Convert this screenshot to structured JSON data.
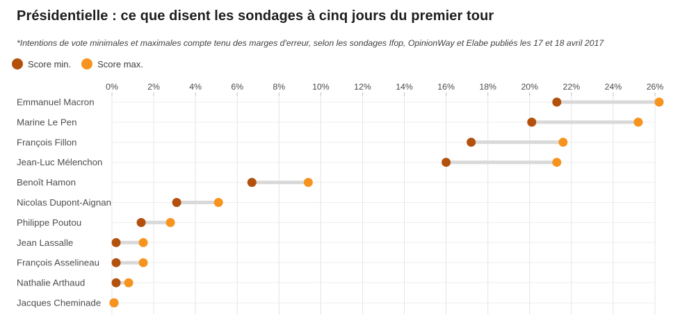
{
  "header": {
    "title": "Présidentielle : ce que disent les sondages à cinq jours du premier tour",
    "subtitle": "*Intentions de vote minimales et maximales compte tenu des marges d'erreur, selon les sondages Ifop, OpinionWay et Elabe publiés les 17 et 18 avril 2017"
  },
  "legend": {
    "items": [
      {
        "label": "Score min.",
        "color": "#b2500c"
      },
      {
        "label": "Score max.",
        "color": "#f7941f"
      }
    ]
  },
  "colors": {
    "score_min": "#b2500c",
    "score_max": "#f7941f",
    "connector": "#d9d9d9",
    "grid_vertical": "#e4e4e4",
    "grid_row": "#ededed",
    "tick_mark": "#bdbdbd",
    "axis_text": "#4a4a4a",
    "label_text": "#4d4d4d"
  },
  "chart_data": {
    "type": "dumbbell",
    "title": "Présidentielle : ce que disent les sondages à cinq jours du premier tour",
    "xlabel": "",
    "ylabel": "",
    "grid": true,
    "legend_position": "top-left",
    "xlim": [
      0,
      26
    ],
    "x_ticks": [
      "0%",
      "2%",
      "4%",
      "6%",
      "8%",
      "10%",
      "12%",
      "14%",
      "16%",
      "18%",
      "20%",
      "22%",
      "24%",
      "26%"
    ],
    "categories": [
      "Emmanuel Macron",
      "Marine Le Pen",
      "François Fillon",
      "Jean-Luc Mélenchon",
      "Benoît Hamon",
      "Nicolas Dupont-Aignan",
      "Philippe Poutou",
      "Jean Lassalle",
      "François Asselineau",
      "Nathalie Arthaud",
      "Jacques Cheminade"
    ],
    "series": [
      {
        "name": "Score min.",
        "color": "#b2500c",
        "values": [
          21.3,
          20.1,
          17.2,
          16.0,
          6.7,
          3.1,
          1.4,
          0.2,
          0.2,
          0.2,
          0.1
        ]
      },
      {
        "name": "Score max.",
        "color": "#f7941f",
        "values": [
          26.2,
          25.2,
          21.6,
          21.3,
          9.4,
          5.1,
          2.8,
          1.5,
          1.5,
          0.8,
          0.1
        ]
      }
    ]
  }
}
